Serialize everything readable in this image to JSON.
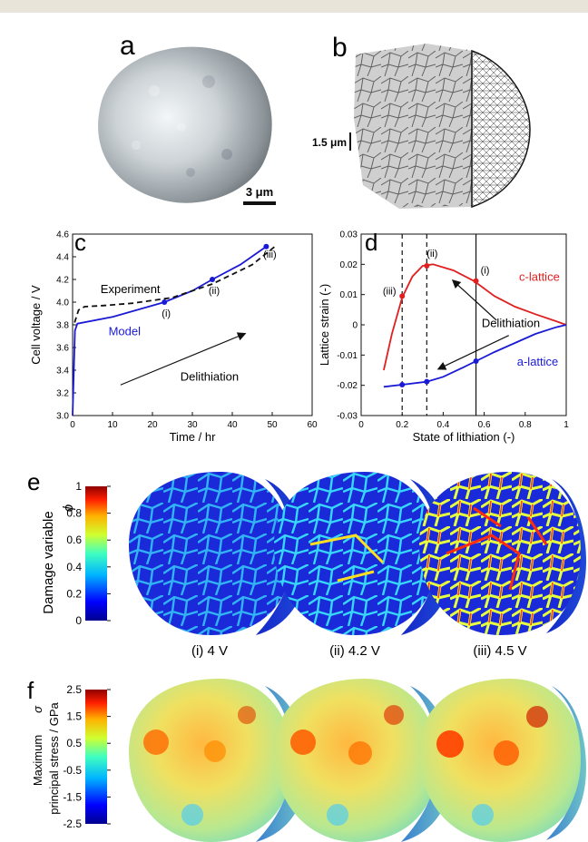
{
  "panel_labels": {
    "a": "a",
    "b": "b",
    "c": "c",
    "d": "d",
    "e": "e",
    "f": "f"
  },
  "scale_bars": {
    "a": "3 μm",
    "b": "1.5 μm"
  },
  "chart_data": [
    {
      "type": "line",
      "panel": "c",
      "xlabel": "Time / hr",
      "ylabel": "Cell voltage / V",
      "xlim": [
        0,
        60
      ],
      "ylim": [
        3.0,
        4.6
      ],
      "xticks": [
        0,
        10,
        20,
        30,
        40,
        50,
        60
      ],
      "yticks": [
        3.0,
        3.2,
        3.4,
        3.6,
        3.8,
        4.0,
        4.2,
        4.4,
        4.6
      ],
      "series": [
        {
          "name": "Model",
          "color": "#1a1ad6",
          "style": "solid",
          "x": [
            0,
            0.6,
            1.2,
            10,
            23,
            30,
            35,
            42,
            48.5
          ],
          "y": [
            3.0,
            3.75,
            3.81,
            3.87,
            4.0,
            4.1,
            4.2,
            4.33,
            4.49
          ]
        },
        {
          "name": "Experiment",
          "color": "#111111",
          "style": "dashed",
          "x": [
            0.5,
            1.5,
            3,
            8,
            15,
            25,
            35,
            45,
            51
          ],
          "y": [
            3.82,
            3.93,
            3.96,
            3.97,
            3.99,
            4.04,
            4.16,
            4.33,
            4.5
          ]
        }
      ],
      "markers": [
        {
          "label": "(i)",
          "x": 23,
          "y": 4.0
        },
        {
          "label": "(ii)",
          "x": 35,
          "y": 4.2
        },
        {
          "label": "(iii)",
          "x": 48.5,
          "y": 4.49
        }
      ],
      "annotations": {
        "experiment": "Experiment",
        "model": "Model",
        "arrow": "Delithiation"
      }
    },
    {
      "type": "line",
      "panel": "d",
      "xlabel": "State of lithiation (-)",
      "ylabel": "Lattice strain (-)",
      "xlim": [
        0,
        1
      ],
      "ylim": [
        -0.03,
        0.03
      ],
      "xticks": [
        0,
        0.2,
        0.4,
        0.6,
        0.8,
        1
      ],
      "yticks": [
        -0.03,
        -0.02,
        -0.01,
        0,
        0.01,
        0.02,
        0.03
      ],
      "series": [
        {
          "name": "c-lattice",
          "color": "#e02020",
          "x": [
            0.11,
            0.15,
            0.2,
            0.25,
            0.3,
            0.35,
            0.45,
            0.55,
            0.65,
            0.75,
            0.85,
            0.95,
            1.0
          ],
          "y": [
            -0.015,
            -0.003,
            0.009,
            0.016,
            0.0195,
            0.02,
            0.018,
            0.0145,
            0.0095,
            0.006,
            0.0035,
            0.0012,
            0.0
          ]
        },
        {
          "name": "a-lattice",
          "color": "#1a1ad6",
          "x": [
            0.11,
            0.2,
            0.32,
            0.4,
            0.5,
            0.56,
            0.65,
            0.75,
            0.85,
            0.95,
            1.0
          ],
          "y": [
            -0.0205,
            -0.0198,
            -0.0188,
            -0.0172,
            -0.014,
            -0.012,
            -0.009,
            -0.006,
            -0.003,
            -0.0008,
            0.0
          ]
        }
      ],
      "vlines": [
        {
          "x": 0.2,
          "style": "dashed"
        },
        {
          "x": 0.32,
          "style": "dashed"
        },
        {
          "x": 0.56,
          "style": "solid"
        }
      ],
      "markers": [
        {
          "label": "(iii)",
          "x": 0.2,
          "y": 0.0095
        },
        {
          "label": "(ii)",
          "x": 0.32,
          "y": 0.0195
        },
        {
          "label": "(i)",
          "x": 0.56,
          "y": 0.0145
        }
      ],
      "annotations": {
        "arrow": "Delithiation",
        "c_label": "c-lattice",
        "a_label": "a-lattice"
      }
    }
  ],
  "panel_e": {
    "colorbar_title": "Damage variable",
    "colorbar_symbol": "ϕ",
    "colorbar_ticks": [
      "1",
      "0.8",
      "0.6",
      "0.4",
      "0.2",
      "0"
    ],
    "captions": [
      "(i) 4 V",
      "(ii) 4.2 V",
      "(iii) 4.5 V"
    ]
  },
  "panel_f": {
    "colorbar_title_1": "Maximum",
    "colorbar_symbol": "σ",
    "colorbar_title_2": "principal stress / GPa",
    "colorbar_ticks": [
      "2.5",
      "1.5",
      "0.5",
      "-0.5",
      "-1.5",
      "-2.5"
    ]
  }
}
